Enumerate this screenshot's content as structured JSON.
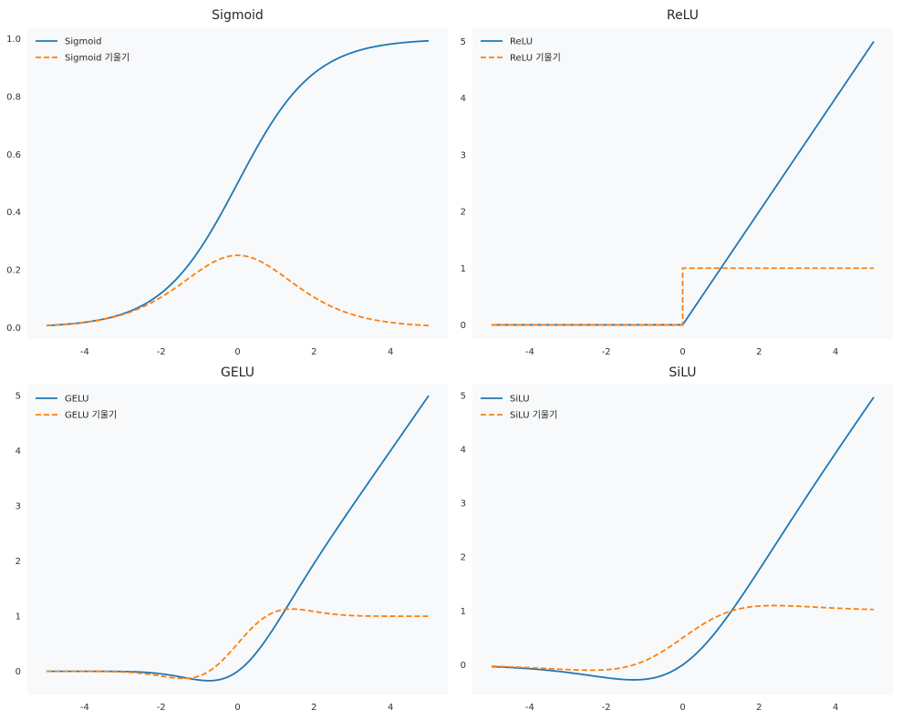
{
  "colors": {
    "function": "#1f77b4",
    "derivative": "#ff7f0e",
    "plot_bg": "#f7f9fb"
  },
  "chart_data": [
    {
      "type": "line",
      "title": "Sigmoid",
      "func": "sigmoid",
      "x_range": [
        -5,
        5
      ],
      "xlim": [
        -5.5,
        5.5
      ],
      "ylim": [
        -0.04,
        1.04
      ],
      "xticks": [
        -4,
        -2,
        0,
        2,
        4
      ],
      "yticks": [
        0.0,
        0.2,
        0.4,
        0.6,
        0.8,
        1.0
      ],
      "ytick_labels": [
        "0.0",
        "0.2",
        "0.4",
        "0.6",
        "0.8",
        "1.0"
      ],
      "legend_position": "top-left",
      "series": [
        {
          "name": "Sigmoid",
          "style": "solid",
          "key": "f",
          "x": [
            -5,
            -4,
            -3,
            -2,
            -1,
            0,
            1,
            2,
            3,
            4,
            5
          ],
          "y": [
            0.007,
            0.018,
            0.047,
            0.119,
            0.269,
            0.5,
            0.731,
            0.881,
            0.953,
            0.982,
            0.993
          ]
        },
        {
          "name": "Sigmoid 기울기",
          "style": "dashed",
          "key": "df",
          "x": [
            -5,
            -4,
            -3,
            -2,
            -1,
            0,
            1,
            2,
            3,
            4,
            5
          ],
          "y": [
            0.007,
            0.018,
            0.045,
            0.105,
            0.197,
            0.25,
            0.197,
            0.105,
            0.045,
            0.018,
            0.007
          ]
        }
      ]
    },
    {
      "type": "line",
      "title": "ReLU",
      "func": "relu",
      "x_range": [
        -5,
        5
      ],
      "xlim": [
        -5.5,
        5.5
      ],
      "ylim": [
        -0.25,
        5.25
      ],
      "xticks": [
        -4,
        -2,
        0,
        2,
        4
      ],
      "yticks": [
        0,
        1,
        2,
        3,
        4,
        5
      ],
      "ytick_labels": [
        "0",
        "1",
        "2",
        "3",
        "4",
        "5"
      ],
      "legend_position": "top-left",
      "series": [
        {
          "name": "ReLU",
          "style": "solid",
          "key": "f",
          "x": [
            -5,
            -4,
            -3,
            -2,
            -1,
            0,
            1,
            2,
            3,
            4,
            5
          ],
          "y": [
            0,
            0,
            0,
            0,
            0,
            0,
            1,
            2,
            3,
            4,
            5
          ]
        },
        {
          "name": "ReLU 기울기",
          "style": "dashed",
          "key": "df",
          "x": [
            -5,
            -4,
            -3,
            -2,
            -1,
            0,
            1,
            2,
            3,
            4,
            5
          ],
          "y": [
            0,
            0,
            0,
            0,
            0,
            0,
            1,
            1,
            1,
            1,
            1
          ]
        }
      ]
    },
    {
      "type": "line",
      "title": "GELU",
      "func": "gelu",
      "x_range": [
        -5,
        5
      ],
      "xlim": [
        -5.5,
        5.5
      ],
      "ylim": [
        -0.42,
        5.2
      ],
      "xticks": [
        -4,
        -2,
        0,
        2,
        4
      ],
      "yticks": [
        0,
        1,
        2,
        3,
        4,
        5
      ],
      "ytick_labels": [
        "0",
        "1",
        "2",
        "3",
        "4",
        "5"
      ],
      "legend_position": "top-left",
      "series": [
        {
          "name": "GELU",
          "style": "solid",
          "key": "f",
          "x": [
            -5,
            -4,
            -3,
            -2,
            -1,
            0,
            1,
            2,
            3,
            4,
            5
          ],
          "y": [
            0,
            0,
            -0.004,
            -0.045,
            -0.159,
            0,
            0.841,
            1.955,
            2.996,
            4,
            5
          ]
        },
        {
          "name": "GELU 기울기",
          "style": "dashed",
          "key": "df",
          "x": [
            -5,
            -4,
            -3,
            -2,
            -1,
            0,
            1,
            2,
            3,
            4,
            5
          ],
          "y": [
            0,
            0,
            -0.012,
            -0.086,
            -0.083,
            0.5,
            1.083,
            1.086,
            1.012,
            1,
            1
          ]
        }
      ]
    },
    {
      "type": "line",
      "title": "SiLU",
      "func": "silu",
      "x_range": [
        -5,
        5
      ],
      "xlim": [
        -5.5,
        5.5
      ],
      "ylim": [
        -0.55,
        5.2
      ],
      "xticks": [
        -4,
        -2,
        0,
        2,
        4
      ],
      "yticks": [
        0,
        1,
        2,
        3,
        4,
        5
      ],
      "ytick_labels": [
        "0",
        "1",
        "2",
        "3",
        "4",
        "5"
      ],
      "legend_position": "top-left",
      "series": [
        {
          "name": "SiLU",
          "style": "solid",
          "key": "f",
          "x": [
            -5,
            -4,
            -3,
            -2,
            -1,
            0,
            1,
            2,
            3,
            4,
            5
          ],
          "y": [
            -0.033,
            -0.072,
            -0.142,
            -0.238,
            -0.269,
            0,
            0.731,
            1.762,
            2.858,
            3.928,
            4.967
          ]
        },
        {
          "name": "SiLU 기울기",
          "style": "dashed",
          "key": "df",
          "x": [
            -5,
            -4,
            -3,
            -2,
            -1,
            0,
            1,
            2,
            3,
            4,
            5
          ],
          "y": [
            -0.027,
            -0.053,
            -0.088,
            -0.091,
            0.072,
            0.5,
            0.928,
            1.091,
            1.088,
            1.053,
            1.027
          ]
        }
      ]
    }
  ]
}
